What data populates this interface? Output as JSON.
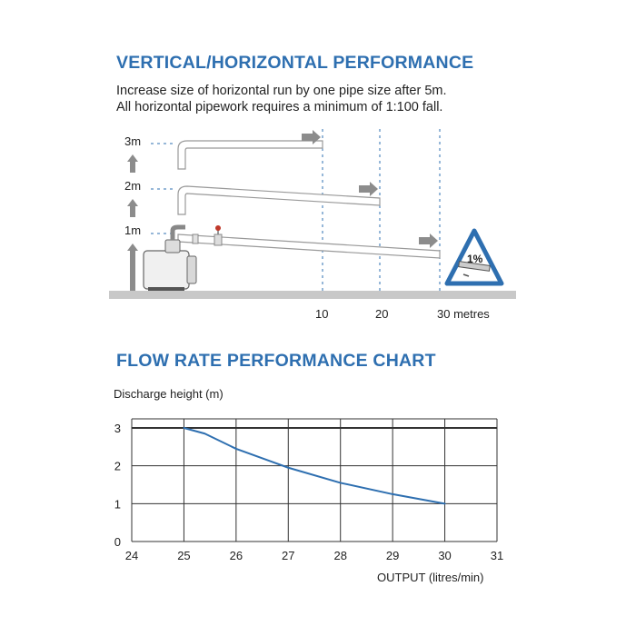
{
  "section1": {
    "title": "VERTICAL/HORIZONTAL PERFORMANCE",
    "note_lines": [
      "Increase size of horizontal run by one pipe size after 5m.",
      "All horizontal pipework requires a minimum of 1:100 fall."
    ],
    "height_labels": [
      "3m",
      "2m",
      "1m"
    ],
    "distance_labels": [
      "10",
      "20",
      "30 metres"
    ],
    "fall_sign_text": "1%",
    "colors": {
      "pipe_outline": "#999999",
      "arrow": "#8c8c8c",
      "guide": "#2e6fb0",
      "ground": "#c8c8c8",
      "sign": "#2e6fb0"
    }
  },
  "section2": {
    "title": "FLOW RATE PERFORMANCE CHART"
  },
  "chart_data": {
    "type": "line",
    "ylabel": "Discharge height (m)",
    "xlabel": "OUTPUT (litres/min)",
    "x_ticks": [
      "24",
      "25",
      "26",
      "27",
      "28",
      "29",
      "30",
      "31"
    ],
    "y_ticks": [
      "0",
      "1",
      "2",
      "3"
    ],
    "xlim": [
      24,
      31
    ],
    "ylim": [
      0,
      3
    ],
    "grid": true,
    "series": [
      {
        "color": "#2e6fb0",
        "x": [
          25,
          25.4,
          26,
          27,
          28,
          29,
          30
        ],
        "y": [
          3.0,
          2.85,
          2.45,
          1.95,
          1.55,
          1.25,
          1.0
        ]
      }
    ]
  }
}
